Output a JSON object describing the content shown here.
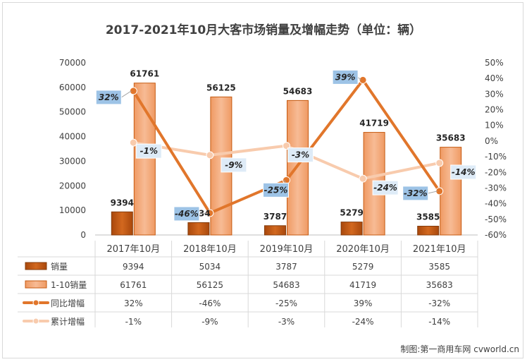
{
  "chart_data": {
    "type": "bar",
    "title": "2017-2021年10月大客市场销量及增幅走势（单位：辆）",
    "categories": [
      "2017年10月",
      "2018年10月",
      "2019年10月",
      "2020年10月",
      "2021年10月"
    ],
    "series": [
      {
        "name": "销量",
        "kind": "bar",
        "axis": "left",
        "color": "#c55a11",
        "values": [
          9394,
          5034,
          3787,
          5279,
          3585
        ]
      },
      {
        "name": "1-10销量",
        "kind": "bar",
        "axis": "left",
        "color": "#f4b183",
        "values": [
          61761,
          56125,
          54683,
          41719,
          35683
        ]
      },
      {
        "name": "同比增幅",
        "kind": "line",
        "axis": "right",
        "color": "#e1762b",
        "values": [
          32,
          -46,
          -25,
          39,
          -32
        ],
        "labels": [
          "32%",
          "-46%",
          "-25%",
          "39%",
          "-32%"
        ]
      },
      {
        "name": "累计增幅",
        "kind": "line",
        "axis": "right",
        "color": "#f8cbad",
        "values": [
          -1,
          -9,
          -3,
          -24,
          -14
        ],
        "labels": [
          "-1%",
          "-9%",
          "-3%",
          "-24%",
          "-14%"
        ]
      }
    ],
    "y_left": {
      "min": 0,
      "max": 70000,
      "ticks": [
        "0",
        "10000",
        "20000",
        "30000",
        "40000",
        "50000",
        "60000",
        "70000"
      ]
    },
    "y_right": {
      "min": -60,
      "max": 50,
      "ticks": [
        "-60%",
        "-50%",
        "-40%",
        "-30%",
        "-20%",
        "-10%",
        "0%",
        "10%",
        "20%",
        "30%",
        "40%",
        "50%"
      ]
    },
    "data_table": {
      "rows": [
        {
          "label": "销量",
          "cells": [
            "9394",
            "5034",
            "3787",
            "5279",
            "3585"
          ]
        },
        {
          "label": "1-10销量",
          "cells": [
            "61761",
            "56125",
            "54683",
            "41719",
            "35683"
          ]
        },
        {
          "label": "同比增幅",
          "cells": [
            "32%",
            "-46%",
            "-25%",
            "39%",
            "-32%"
          ]
        },
        {
          "label": "累计增幅",
          "cells": [
            "-1%",
            "-9%",
            "-3%",
            "-24%",
            "-14%"
          ]
        }
      ]
    },
    "grid": false,
    "legend": "data-table"
  },
  "credit": "制图:第一商用车网 cvworld.cn"
}
